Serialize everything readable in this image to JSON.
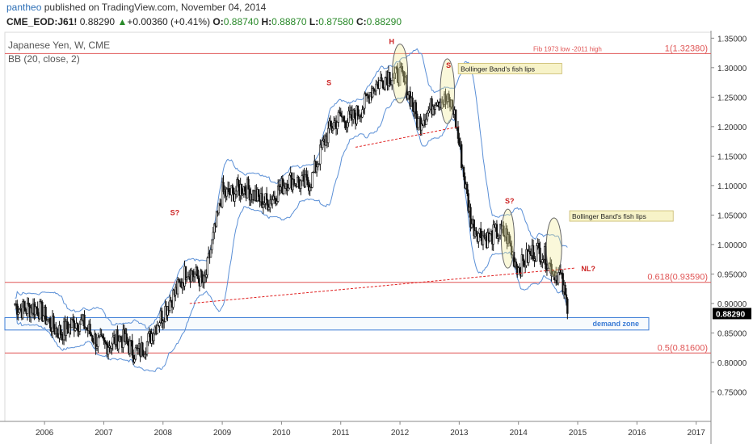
{
  "header": {
    "author": "pantheo",
    "published_text": "published on TradingView.com, November 04, 2014",
    "symbol": "CME_EOD:J61!",
    "last": "0.88290",
    "change": "+0.00360 (+0.41%)",
    "o_label": "O:",
    "o": "0.88740",
    "h_label": "H:",
    "h": "0.88870",
    "l_label": "L:",
    "l": "0.87580",
    "c_label": "C:",
    "c": "0.88290"
  },
  "legend": {
    "title": "Japanese Yen, W, CME",
    "indicator": "BB (20, close, 2)"
  },
  "colors": {
    "candle": "#111111",
    "bands": "#5a8fd6",
    "fib": "#e05555",
    "trend": "#e02020",
    "zone": "#3a7bd5",
    "marker": "#cc2222",
    "bubble": "#f7f3c8"
  },
  "chart_data": {
    "type": "line",
    "x": [
      "2005.5",
      "2006.0",
      "2006.5",
      "2007.0",
      "2007.5",
      "2008.0",
      "2008.4",
      "2008.7",
      "2009.0",
      "2009.5",
      "2010.0",
      "2010.5",
      "2011.0",
      "2011.4",
      "2011.8",
      "2012.0",
      "2012.3",
      "2012.6",
      "2012.9",
      "2013.2",
      "2013.5",
      "2013.8",
      "2014.0",
      "2014.4",
      "2014.7",
      "2014.84"
    ],
    "series": [
      {
        "values": [
          0.91,
          0.87,
          0.86,
          0.84,
          0.82,
          0.87,
          0.97,
          0.92,
          1.1,
          1.08,
          1.09,
          1.12,
          1.22,
          1.23,
          1.3,
          1.29,
          1.2,
          1.26,
          1.22,
          1.05,
          1.0,
          1.02,
          0.97,
          0.98,
          0.96,
          0.8829
        ]
      }
    ],
    "x_ticks": [
      "2006",
      "2007",
      "2008",
      "2009",
      "2010",
      "2011",
      "2012",
      "2013",
      "2014",
      "2015",
      "2016",
      "2017"
    ],
    "y_ticks": [
      "1.35000",
      "1.30000",
      "1.25000",
      "1.20000",
      "1.15000",
      "1.10000",
      "1.05000",
      "1.00000",
      "0.95000",
      "0.90000",
      "0.85000",
      "0.80000",
      "0.75000"
    ],
    "ylim": [
      0.7,
      1.36
    ],
    "xlim": [
      2005.33,
      2017.25
    ],
    "last_price": "0.88290",
    "levels": [
      {
        "value": 1.3238,
        "label": "1(1.32380)",
        "note": "Fib 1973 low -2011 high"
      },
      {
        "value": 0.9359,
        "label": "0.618(0.93590)"
      },
      {
        "value": 0.816,
        "label": "0.5(0.81600)"
      }
    ],
    "trendlines": [
      {
        "from": [
          2008.45,
          0.9
        ],
        "to": [
          2014.95,
          0.96
        ],
        "label": "NL?"
      },
      {
        "from": [
          2011.25,
          1.165
        ],
        "to": [
          2013.0,
          1.2
        ]
      }
    ],
    "demand_zone": {
      "from_x": 2005.33,
      "to_x": 2016.2,
      "high": 0.876,
      "low": 0.855,
      "label": "demand zone"
    },
    "pattern_markers": [
      {
        "x": 2008.2,
        "y": 1.05,
        "label": "S?"
      },
      {
        "x": 2010.8,
        "y": 1.27,
        "label": "S"
      },
      {
        "x": 2011.86,
        "y": 1.34,
        "label": "H"
      },
      {
        "x": 2012.82,
        "y": 1.3,
        "label": "S"
      },
      {
        "x": 2013.85,
        "y": 1.07,
        "label": "S?"
      }
    ],
    "annotations": [
      {
        "x": 2012.82,
        "y": 1.295,
        "text": "Bollinger Band's fish lips"
      },
      {
        "x": 2014.7,
        "y": 1.045,
        "text": "Bollinger Band's fish lips"
      }
    ],
    "ellipses": [
      {
        "cx": 2012.0,
        "cy": 1.29,
        "rx": 0.13,
        "ry": 0.05
      },
      {
        "cx": 2012.8,
        "cy": 1.26,
        "rx": 0.12,
        "ry": 0.055
      },
      {
        "cx": 2013.82,
        "cy": 1.01,
        "rx": 0.11,
        "ry": 0.05
      },
      {
        "cx": 2014.6,
        "cy": 0.995,
        "rx": 0.13,
        "ry": 0.05
      }
    ]
  }
}
